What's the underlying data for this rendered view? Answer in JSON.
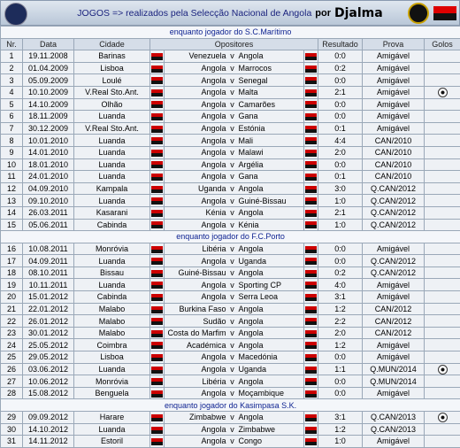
{
  "header": {
    "title": "JOGOS => realizados pela Selecção Nacional de Angola",
    "by": "por",
    "player": "Djalma"
  },
  "table": {
    "columns": [
      "Nr.",
      "Data",
      "Cidade",
      "Opositores",
      "Resultado",
      "Prova",
      "Golos"
    ],
    "separator": "v",
    "sections": [
      {
        "title": "enquanto jogador do S.C.Marítimo",
        "rows": [
          {
            "nr": 1,
            "date": "19.11.2008",
            "city": "Barinas",
            "home": "Venezuela",
            "away": "Angola",
            "result": "0:0",
            "competition": "Amigável",
            "goal": false
          },
          {
            "nr": 2,
            "date": "01.04.2009",
            "city": "Lisboa",
            "home": "Angola",
            "away": "Marrocos",
            "result": "0:2",
            "competition": "Amigável",
            "goal": false
          },
          {
            "nr": 3,
            "date": "05.09.2009",
            "city": "Loulé",
            "home": "Angola",
            "away": "Senegal",
            "result": "0:0",
            "competition": "Amigável",
            "goal": false
          },
          {
            "nr": 4,
            "date": "10.10.2009",
            "city": "V.Real Sto.Ant.",
            "home": "Angola",
            "away": "Malta",
            "result": "2:1",
            "competition": "Amigável",
            "goal": true
          },
          {
            "nr": 5,
            "date": "14.10.2009",
            "city": "Olhão",
            "home": "Angola",
            "away": "Camarões",
            "result": "0:0",
            "competition": "Amigável",
            "goal": false
          },
          {
            "nr": 6,
            "date": "18.11.2009",
            "city": "Luanda",
            "home": "Angola",
            "away": "Gana",
            "result": "0:0",
            "competition": "Amigável",
            "goal": false
          },
          {
            "nr": 7,
            "date": "30.12.2009",
            "city": "V.Real Sto.Ant.",
            "home": "Angola",
            "away": "Estónia",
            "result": "0:1",
            "competition": "Amigável",
            "goal": false
          },
          {
            "nr": 8,
            "date": "10.01.2010",
            "city": "Luanda",
            "home": "Angola",
            "away": "Mali",
            "result": "4:4",
            "competition": "CAN/2010",
            "goal": false
          },
          {
            "nr": 9,
            "date": "14.01.2010",
            "city": "Luanda",
            "home": "Angola",
            "away": "Malawi",
            "result": "2:0",
            "competition": "CAN/2010",
            "goal": false
          },
          {
            "nr": 10,
            "date": "18.01.2010",
            "city": "Luanda",
            "home": "Angola",
            "away": "Argélia",
            "result": "0:0",
            "competition": "CAN/2010",
            "goal": false
          },
          {
            "nr": 11,
            "date": "24.01.2010",
            "city": "Luanda",
            "home": "Angola",
            "away": "Gana",
            "result": "0:1",
            "competition": "CAN/2010",
            "goal": false
          },
          {
            "nr": 12,
            "date": "04.09.2010",
            "city": "Kampala",
            "home": "Uganda",
            "away": "Angola",
            "result": "3:0",
            "competition": "Q.CAN/2012",
            "goal": false
          },
          {
            "nr": 13,
            "date": "09.10.2010",
            "city": "Luanda",
            "home": "Angola",
            "away": "Guiné-Bissau",
            "result": "1:0",
            "competition": "Q.CAN/2012",
            "goal": false
          },
          {
            "nr": 14,
            "date": "26.03.2011",
            "city": "Kasarani",
            "home": "Kénia",
            "away": "Angola",
            "result": "2:1",
            "competition": "Q.CAN/2012",
            "goal": false
          },
          {
            "nr": 15,
            "date": "05.06.2011",
            "city": "Cabinda",
            "home": "Angola",
            "away": "Kénia",
            "result": "1:0",
            "competition": "Q.CAN/2012",
            "goal": false
          }
        ]
      },
      {
        "title": "enquanto jogador do F.C.Porto",
        "rows": [
          {
            "nr": 16,
            "date": "10.08.2011",
            "city": "Monróvia",
            "home": "Libéria",
            "away": "Angola",
            "result": "0:0",
            "competition": "Amigável",
            "goal": false
          },
          {
            "nr": 17,
            "date": "04.09.2011",
            "city": "Luanda",
            "home": "Angola",
            "away": "Uganda",
            "result": "0:0",
            "competition": "Q.CAN/2012",
            "goal": false
          },
          {
            "nr": 18,
            "date": "08.10.2011",
            "city": "Bissau",
            "home": "Guiné-Bissau",
            "away": "Angola",
            "result": "0:2",
            "competition": "Q.CAN/2012",
            "goal": false
          },
          {
            "nr": 19,
            "date": "10.11.2011",
            "city": "Luanda",
            "home": "Angola",
            "away": "Sporting CP",
            "result": "4:0",
            "competition": "Amigável",
            "goal": false
          },
          {
            "nr": 20,
            "date": "15.01.2012",
            "city": "Cabinda",
            "home": "Angola",
            "away": "Serra Leoa",
            "result": "3:1",
            "competition": "Amigável",
            "goal": false
          },
          {
            "nr": 21,
            "date": "22.01.2012",
            "city": "Malabo",
            "home": "Burkina Faso",
            "away": "Angola",
            "result": "1:2",
            "competition": "CAN/2012",
            "goal": false
          },
          {
            "nr": 22,
            "date": "26.01.2012",
            "city": "Malabo",
            "home": "Sudão",
            "away": "Angola",
            "result": "2:2",
            "competition": "CAN/2012",
            "goal": false
          },
          {
            "nr": 23,
            "date": "30.01.2012",
            "city": "Malabo",
            "home": "Costa do Marfim",
            "away": "Angola",
            "result": "2:0",
            "competition": "CAN/2012",
            "goal": false
          },
          {
            "nr": 24,
            "date": "25.05.2012",
            "city": "Coimbra",
            "home": "Académica",
            "away": "Angola",
            "result": "1:2",
            "competition": "Amigável",
            "goal": false
          },
          {
            "nr": 25,
            "date": "29.05.2012",
            "city": "Lisboa",
            "home": "Angola",
            "away": "Macedónia",
            "result": "0:0",
            "competition": "Amigável",
            "goal": false
          },
          {
            "nr": 26,
            "date": "03.06.2012",
            "city": "Luanda",
            "home": "Angola",
            "away": "Uganda",
            "result": "1:1",
            "competition": "Q.MUN/2014",
            "goal": true
          },
          {
            "nr": 27,
            "date": "10.06.2012",
            "city": "Monróvia",
            "home": "Libéria",
            "away": "Angola",
            "result": "0:0",
            "competition": "Q.MUN/2014",
            "goal": false
          },
          {
            "nr": 28,
            "date": "15.08.2012",
            "city": "Benguela",
            "home": "Angola",
            "away": "Moçambique",
            "result": "0:0",
            "competition": "Amigável",
            "goal": false
          }
        ]
      },
      {
        "title": "enquanto jogador do Kasimpasa S.K.",
        "rows": [
          {
            "nr": 29,
            "date": "09.09.2012",
            "city": "Harare",
            "home": "Zimbabwe",
            "away": "Angola",
            "result": "3:1",
            "competition": "Q.CAN/2013",
            "goal": true
          },
          {
            "nr": 30,
            "date": "14.10.2012",
            "city": "Luanda",
            "home": "Angola",
            "away": "Zimbabwe",
            "result": "1:2",
            "competition": "Q.CAN/2013",
            "goal": false
          },
          {
            "nr": 31,
            "date": "14.11.2012",
            "city": "Estoril",
            "home": "Angola",
            "away": "Congo",
            "result": "1:0",
            "competition": "Amigável",
            "goal": false
          }
        ]
      }
    ]
  }
}
